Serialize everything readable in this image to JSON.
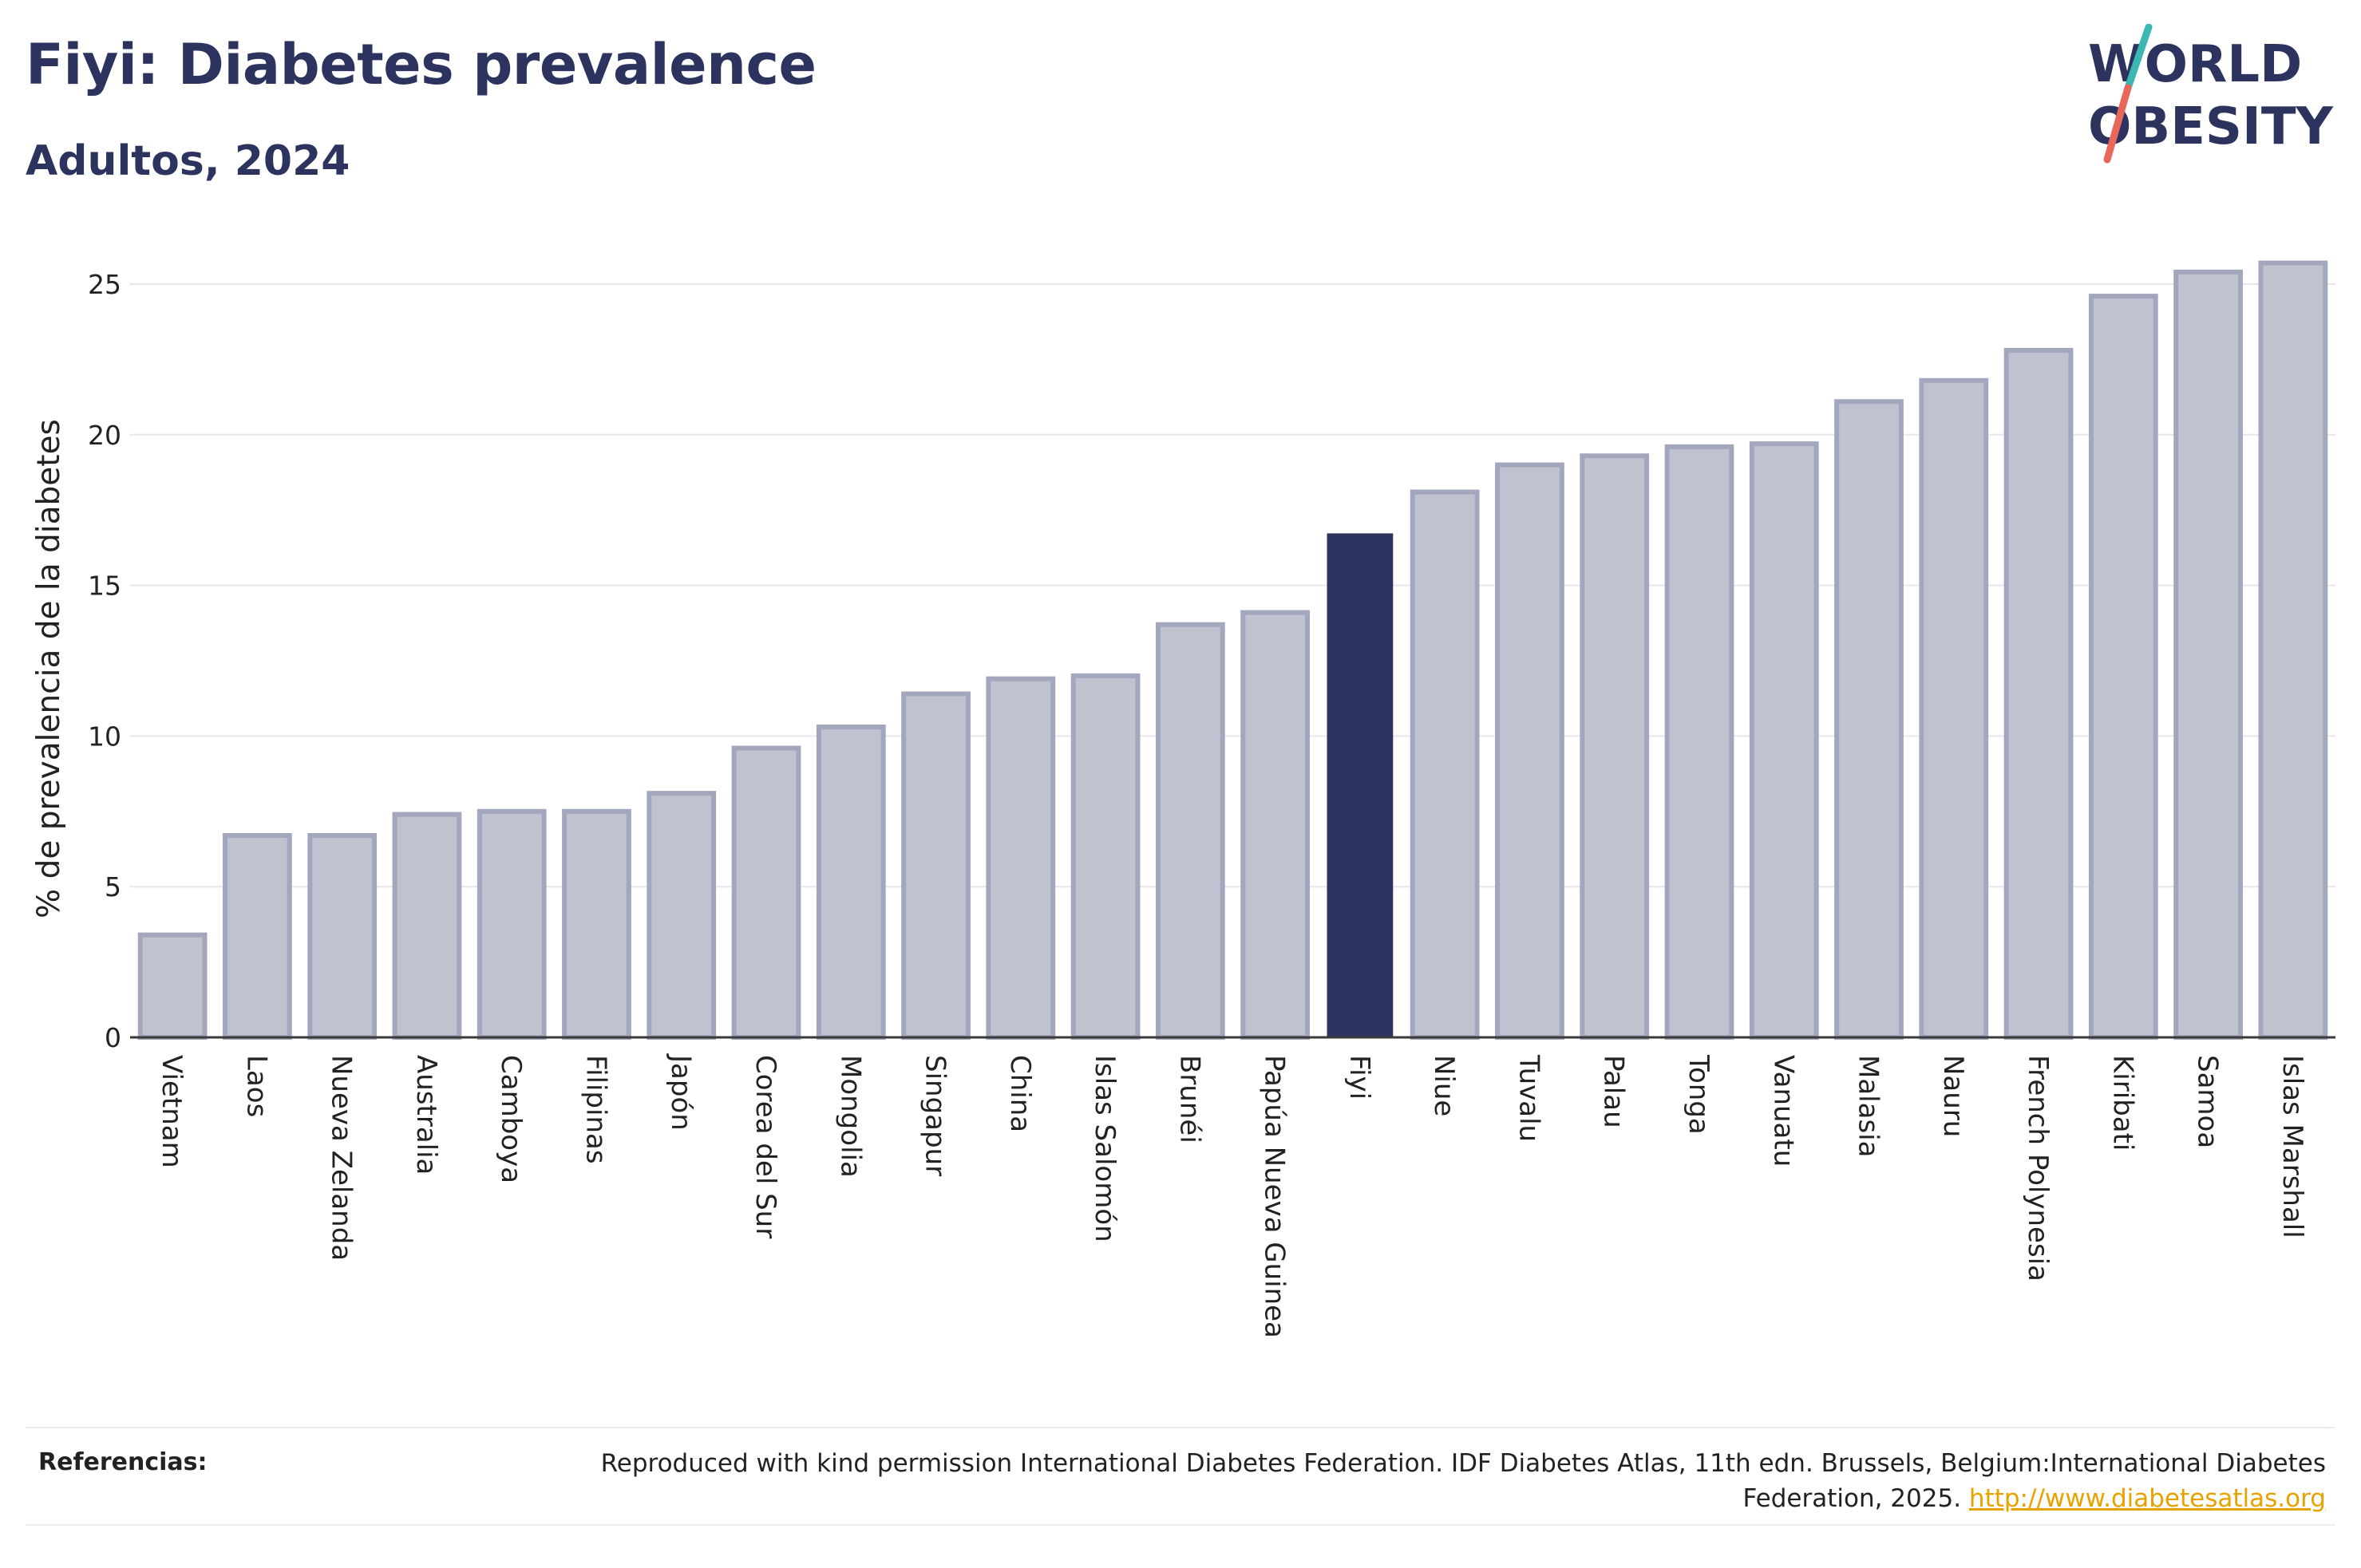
{
  "header": {
    "title": "Fiyi: Diabetes prevalence",
    "subtitle": "Adultos, 2024"
  },
  "logo": {
    "line1": "WORLD",
    "line2": "OBESITY",
    "colors": {
      "text": "#2b335e",
      "slash_top": "#3bb8b3",
      "slash_bottom": "#e8675a"
    }
  },
  "chart_data": {
    "type": "bar",
    "title": "Fiyi: Diabetes prevalence",
    "subtitle": "Adultos, 2024",
    "ylabel": "% de prevalencia de la diabetes",
    "xlabel": "",
    "ylim": [
      0,
      26
    ],
    "yticks": [
      0,
      5,
      10,
      15,
      20,
      25
    ],
    "grid": true,
    "highlight": "Fiyi",
    "colors": {
      "bar": "#bfc2cf",
      "bar_border": "#a2a7bd",
      "highlight": "#2b335e"
    },
    "categories": [
      "Vietnam",
      "Laos",
      "Nueva Zelanda",
      "Australia",
      "Camboya",
      "Filipinas",
      "Japón",
      "Corea del Sur",
      "Mongolia",
      "Singapur",
      "China",
      "Islas Salomón",
      "Brunéi",
      "Papúa Nueva Guinea",
      "Fiyi",
      "Niue",
      "Tuvalu",
      "Palau",
      "Tonga",
      "Vanuatu",
      "Malasia",
      "Nauru",
      "French Polynesia",
      "Kiribati",
      "Samoa",
      "Islas Marshall"
    ],
    "values": [
      3.4,
      6.7,
      6.7,
      7.4,
      7.5,
      7.5,
      8.1,
      9.6,
      10.3,
      11.4,
      11.9,
      12.0,
      13.7,
      14.1,
      16.7,
      18.1,
      19.0,
      19.3,
      19.6,
      19.7,
      21.1,
      21.8,
      22.8,
      24.6,
      25.4,
      25.7
    ]
  },
  "footer": {
    "label": "Referencias:",
    "text": "Reproduced with kind permission International Diabetes Federation. IDF Diabetes Atlas, 11th edn. Brussels, Belgium:International Diabetes Federation, 2025.",
    "link": "http://www.diabetesatlas.org"
  }
}
